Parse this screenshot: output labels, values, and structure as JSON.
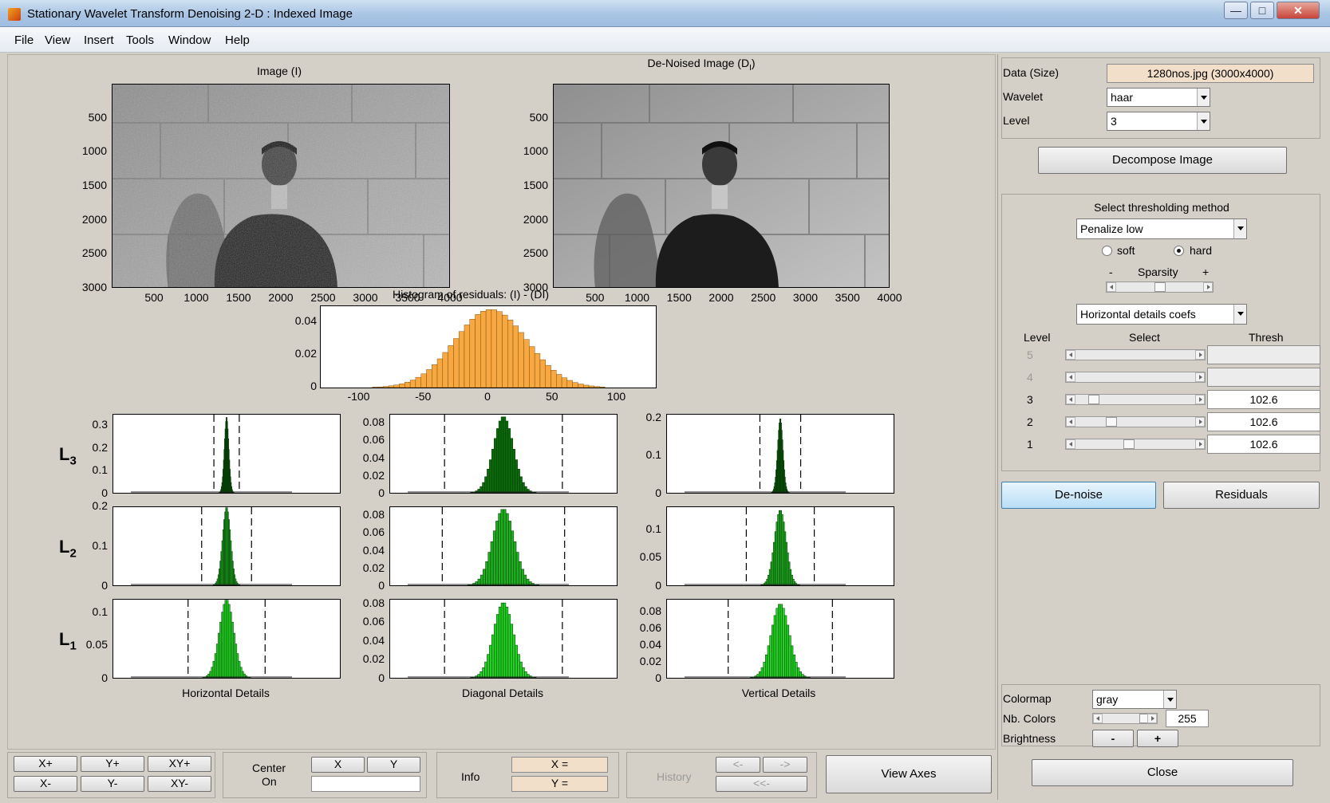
{
  "window": {
    "title": "Stationary Wavelet Transform Denoising 2-D : Indexed Image",
    "minimize": "—",
    "maximize": "□",
    "close": "✕"
  },
  "menu": [
    "File",
    "View",
    "Insert",
    "Tools",
    "Window",
    "Help"
  ],
  "image_axes": {
    "left_title": "Image (I)",
    "right_title": "De-Noised Image (D",
    "right_title_sub": "I",
    "right_title_end": ")",
    "yticks": [
      "500",
      "1000",
      "1500",
      "2000",
      "2500",
      "3000"
    ],
    "xticks": [
      "500",
      "1000",
      "1500",
      "2000",
      "2500",
      "3000",
      "3500",
      "4000"
    ]
  },
  "residual_hist": {
    "title": "Histogram of residuals: (I) - (DI)",
    "yticks": [
      "0.04",
      "0.02",
      "0"
    ],
    "xticks": [
      "-100",
      "-50",
      "0",
      "50",
      "100"
    ],
    "color": "#f7a840"
  },
  "detail_hists": {
    "level_labels": [
      {
        "L": "L",
        "n": "3"
      },
      {
        "L": "L",
        "n": "2"
      },
      {
        "L": "L",
        "n": "1"
      }
    ],
    "column_titles": [
      "Horizontal Details",
      "Diagonal Details",
      "Vertical Details"
    ],
    "yticks": [
      [
        [
          "0.3",
          "0.2",
          "0.1",
          "0"
        ],
        [
          "0.08",
          "0.06",
          "0.04",
          "0.02",
          "0"
        ],
        [
          "0.2",
          "0.1",
          "0"
        ]
      ],
      [
        [
          "0.2",
          "0.1",
          "0"
        ],
        [
          "0.08",
          "0.06",
          "0.04",
          "0.02",
          "0"
        ],
        [
          "0.1",
          "0.05",
          "0"
        ]
      ],
      [
        [
          "0.1",
          "0.05",
          "0"
        ],
        [
          "0.08",
          "0.06",
          "0.04",
          "0.02",
          "0"
        ],
        [
          "0.08",
          "0.06",
          "0.04",
          "0.02",
          "0"
        ]
      ]
    ],
    "colors": [
      "#0b6b0b",
      "#1fae1f",
      "#22d322"
    ]
  },
  "chart_data": [
    {
      "type": "bar",
      "title": "Histogram of residuals: (I) - (DI)",
      "xlim": [
        -130,
        130
      ],
      "ylim": [
        0,
        0.05
      ],
      "distribution": "gaussian",
      "mean": 0,
      "peak": 0.048,
      "spread": 28
    },
    {
      "type": "bar",
      "title": "Horizontal Details",
      "panels": [
        {
          "level": 3,
          "ylim": [
            0,
            0.35
          ],
          "peak": 0.34,
          "spread": 0.05,
          "thresholds": [
            -0.28,
            0.28
          ]
        },
        {
          "level": 2,
          "ylim": [
            0,
            0.2
          ],
          "peak": 0.2,
          "spread": 0.09,
          "thresholds": [
            -0.55,
            0.55
          ]
        },
        {
          "level": 1,
          "ylim": [
            0,
            0.12
          ],
          "peak": 0.12,
          "spread": 0.16,
          "thresholds": [
            -0.85,
            0.85
          ]
        }
      ]
    },
    {
      "type": "bar",
      "title": "Diagonal Details",
      "panels": [
        {
          "level": 3,
          "ylim": [
            0,
            0.09
          ],
          "peak": 0.088,
          "spread": 0.22,
          "thresholds": [
            -1.3,
            1.3
          ]
        },
        {
          "level": 2,
          "ylim": [
            0,
            0.09
          ],
          "peak": 0.088,
          "spread": 0.24,
          "thresholds": [
            -1.35,
            1.35
          ]
        },
        {
          "level": 1,
          "ylim": [
            0,
            0.085
          ],
          "peak": 0.082,
          "spread": 0.22,
          "thresholds": [
            -1.3,
            1.3
          ]
        }
      ]
    },
    {
      "type": "bar",
      "title": "Vertical Details",
      "panels": [
        {
          "level": 3,
          "ylim": [
            0,
            0.21
          ],
          "peak": 0.2,
          "spread": 0.06,
          "thresholds": [
            -0.45,
            0.45
          ]
        },
        {
          "level": 2,
          "ylim": [
            0,
            0.14
          ],
          "peak": 0.135,
          "spread": 0.13,
          "thresholds": [
            -0.75,
            0.75
          ]
        },
        {
          "level": 1,
          "ylim": [
            0,
            0.095
          ],
          "peak": 0.09,
          "spread": 0.2,
          "thresholds": [
            -1.15,
            1.15
          ]
        }
      ]
    }
  ],
  "right_panel": {
    "data_label": "Data  (Size)",
    "data_value": "1280nos.jpg  (3000x4000)",
    "wavelet_label": "Wavelet",
    "wavelet_value": "haar",
    "level_label": "Level",
    "level_value": "3",
    "decompose_button": "Decompose Image",
    "threshold_title": "Select thresholding method",
    "threshold_method": "Penalize low",
    "soft_label": "soft",
    "hard_label": "hard",
    "hard_selected": true,
    "sparsity_minus": "-",
    "sparsity_label": "Sparsity",
    "sparsity_plus": "+",
    "sparsity_value": 0.5,
    "coef_select": "Horizontal details coefs",
    "col_level": "Level",
    "col_select": "Select",
    "col_thresh": "Thresh",
    "levels": [
      {
        "n": "5",
        "thresh": "",
        "enabled": false,
        "pos": 0
      },
      {
        "n": "4",
        "thresh": "",
        "enabled": false,
        "pos": 0
      },
      {
        "n": "3",
        "thresh": "102.6",
        "enabled": true,
        "pos": 0.12
      },
      {
        "n": "2",
        "thresh": "102.6",
        "enabled": true,
        "pos": 0.28
      },
      {
        "n": "1",
        "thresh": "102.6",
        "enabled": true,
        "pos": 0.44
      }
    ],
    "denoise_button": "De-noise",
    "residuals_button": "Residuals",
    "colormap_label": "Colormap",
    "colormap_value": "gray",
    "nbcolors_label": "Nb. Colors",
    "nbcolors_value": "255",
    "brightness_label": "Brightness",
    "brightness_minus": "-",
    "brightness_plus": "+",
    "close_button": "Close"
  },
  "bottom_bar": {
    "zoom": [
      "X+",
      "Y+",
      "XY+",
      "X-",
      "Y-",
      "XY-"
    ],
    "center_on_1": "Center",
    "center_on_2": "On",
    "x_button": "X",
    "y_button": "Y",
    "info_label": "Info",
    "x_eq": "X =",
    "y_eq": "Y =",
    "history_label": "History",
    "hist_prev": "<-",
    "hist_next": "->",
    "hist_first": "<<-",
    "view_axes": "View Axes"
  }
}
